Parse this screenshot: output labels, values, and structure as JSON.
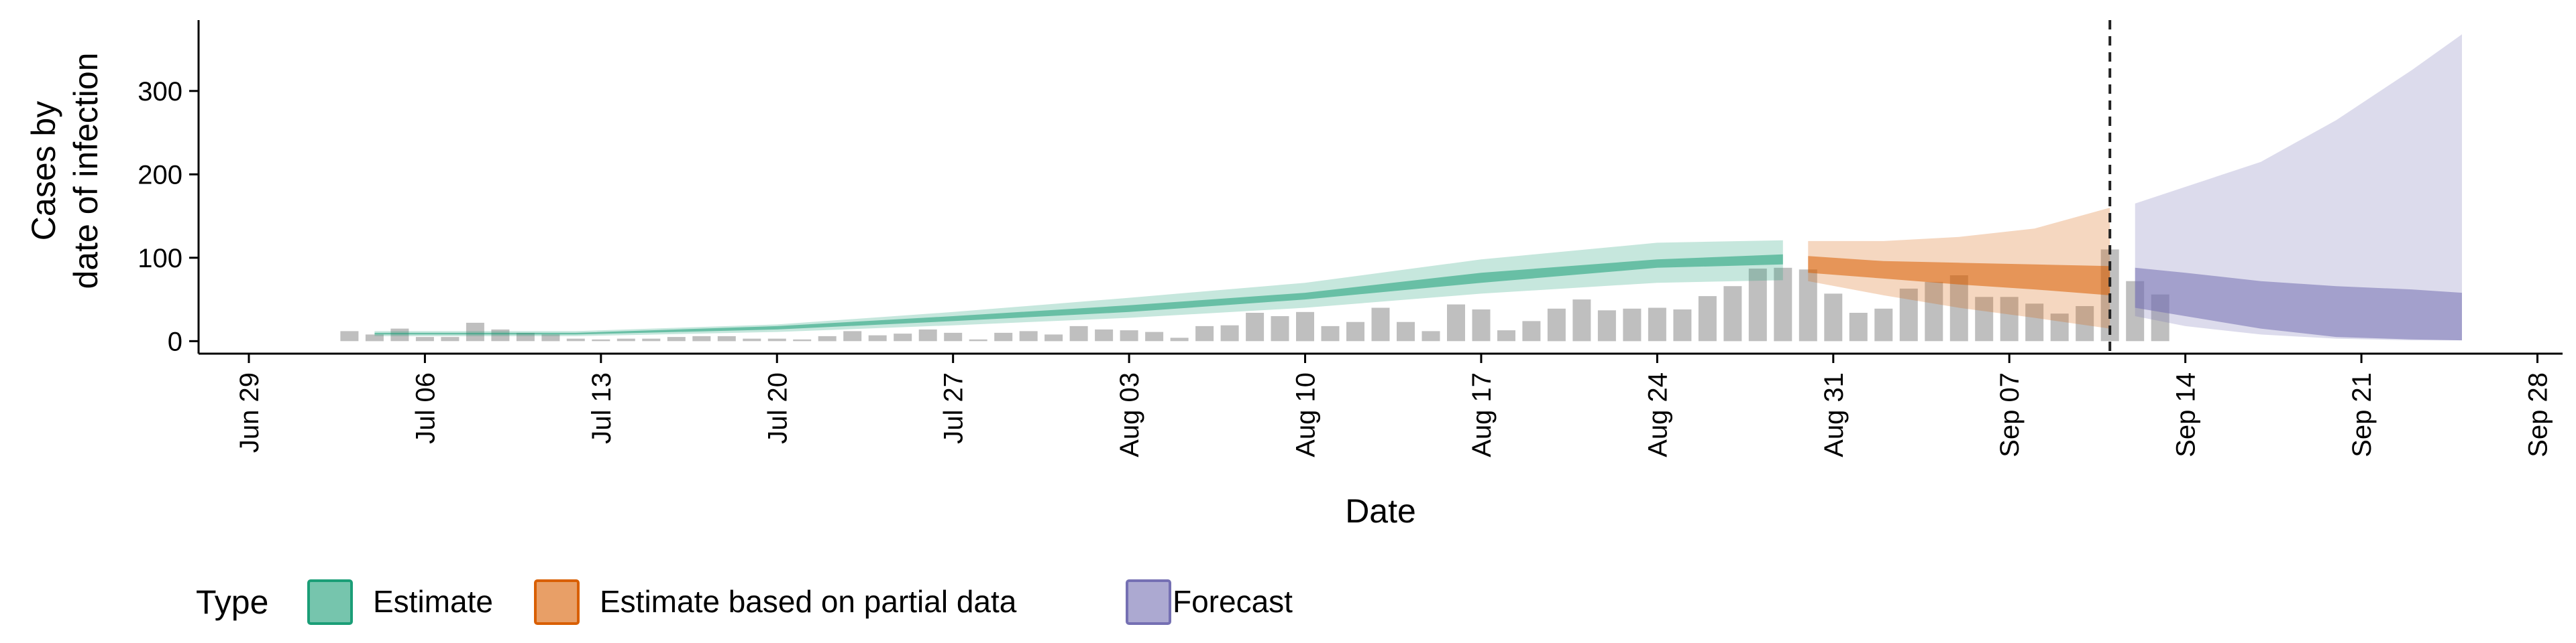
{
  "chart_data": {
    "type": "area",
    "title": "",
    "xlabel": "Date",
    "ylabel": "Cases by date of infection",
    "ylabel_lines": [
      "Cases by",
      "date of infection"
    ],
    "x_ticks": [
      "Jun 29",
      "Jul 06",
      "Jul 13",
      "Jul 20",
      "Jul 27",
      "Aug 03",
      "Aug 10",
      "Aug 17",
      "Aug 24",
      "Aug 31",
      "Sep 07",
      "Sep 14",
      "Sep 21",
      "Sep 28"
    ],
    "x_range": [
      "2020-06-27",
      "2020-09-29"
    ],
    "y_ticks": [
      0,
      100,
      200,
      300
    ],
    "ylim": [
      -15,
      385
    ],
    "grid": false,
    "vline_date": "2020-09-11",
    "legend": {
      "title": "Type",
      "position": "bottom",
      "entries": [
        {
          "label": "Estimate",
          "color": "#1B9E77"
        },
        {
          "label": "Estimate based on partial data",
          "color": "#D95F02"
        },
        {
          "label": "Forecast",
          "color": "#7570B3"
        }
      ]
    },
    "colors": {
      "bars": "#A9A9A9",
      "estimate": "#1B9E77",
      "partial": "#D95F02",
      "forecast": "#7570B3",
      "vline": "#222222"
    },
    "observed_cases": {
      "start_date": "2020-07-03",
      "values": [
        12,
        8,
        15,
        5,
        5,
        22,
        14,
        10,
        8,
        3,
        2,
        3,
        3,
        5,
        6,
        6,
        3,
        3,
        2,
        6,
        12,
        7,
        9,
        14,
        10,
        2,
        10,
        12,
        8,
        18,
        14,
        13,
        11,
        4,
        18,
        19,
        34,
        30,
        35,
        18,
        23,
        40,
        23,
        12,
        44,
        38,
        13,
        24,
        39,
        50,
        37,
        39,
        40,
        38,
        54,
        66,
        87,
        88,
        86,
        57,
        34,
        39,
        63,
        71,
        79,
        53,
        53,
        45,
        33,
        42,
        110,
        72,
        56
      ]
    },
    "series": [
      {
        "name": "Estimate",
        "x": [
          "2020-07-04",
          "2020-07-12",
          "2020-07-20",
          "2020-07-27",
          "2020-08-03",
          "2020-08-10",
          "2020-08-17",
          "2020-08-24",
          "2020-08-29"
        ],
        "outer_lower": [
          6,
          6,
          11,
          19,
          28,
          40,
          57,
          70,
          73
        ],
        "inner_lower": [
          8,
          8,
          14,
          24,
          35,
          50,
          70,
          88,
          92
        ],
        "inner_upper": [
          10,
          10,
          18,
          30,
          43,
          58,
          82,
          98,
          104
        ],
        "outer_upper": [
          12,
          12,
          20,
          35,
          52,
          70,
          98,
          118,
          121
        ]
      },
      {
        "name": "Estimate based on partial data",
        "x": [
          "2020-08-30",
          "2020-09-02",
          "2020-09-05",
          "2020-09-08",
          "2020-09-11"
        ],
        "outer_lower": [
          72,
          55,
          40,
          28,
          15
        ],
        "inner_lower": [
          82,
          75,
          68,
          62,
          55
        ],
        "inner_upper": [
          102,
          96,
          94,
          92,
          90
        ],
        "outer_upper": [
          120,
          120,
          125,
          135,
          160
        ]
      },
      {
        "name": "Forecast",
        "x": [
          "2020-09-12",
          "2020-09-14",
          "2020-09-17",
          "2020-09-20",
          "2020-09-23",
          "2020-09-25"
        ],
        "outer_lower": [
          30,
          18,
          8,
          3,
          1,
          1
        ],
        "inner_lower": [
          40,
          30,
          15,
          5,
          2,
          1
        ],
        "inner_upper": [
          88,
          82,
          72,
          66,
          62,
          58
        ],
        "outer_upper": [
          165,
          185,
          215,
          265,
          325,
          368
        ]
      }
    ]
  }
}
